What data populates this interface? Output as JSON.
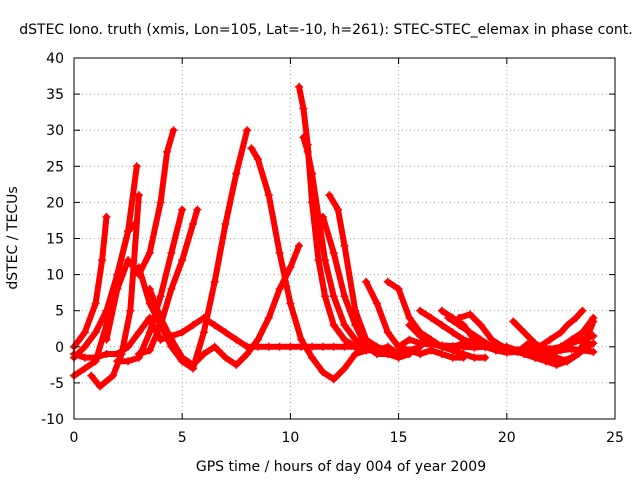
{
  "chart_data": {
    "type": "scatter",
    "title": "dSTEC Iono. truth (xmis, Lon=105, Lat=-10, h=261): STEC-STEC_elemax in phase cont.",
    "xlabel": "GPS time / hours of day 004 of year 2009",
    "ylabel": "dSTEC  / TECUs",
    "xlim": [
      0,
      25
    ],
    "ylim": [
      -10,
      40
    ],
    "x_ticks": [
      0,
      5,
      10,
      15,
      20,
      25
    ],
    "y_ticks": [
      -10,
      -5,
      0,
      5,
      10,
      15,
      20,
      25,
      30,
      35,
      40
    ],
    "x_tick_labels": [
      "0",
      "5",
      "10",
      "15",
      "20",
      "25"
    ],
    "y_tick_labels": [
      "-10",
      "-5",
      "0",
      "5",
      "10",
      "15",
      "20",
      "25",
      "30",
      "35",
      "40"
    ],
    "grid": true,
    "marker": "plus",
    "color": "#ff0000",
    "series": [
      {
        "x": [
          0,
          0.5,
          1.0,
          1.3,
          1.5
        ],
        "y": [
          0,
          2,
          6,
          12,
          18
        ]
      },
      {
        "x": [
          0,
          0.5,
          1.0,
          1.5,
          2.0,
          2.5,
          2.9
        ],
        "y": [
          -1.5,
          0,
          2,
          5,
          10,
          16,
          25
        ]
      },
      {
        "x": [
          0.8,
          1.2,
          1.8,
          2.2,
          2.6,
          3.0
        ],
        "y": [
          -4,
          -5.5,
          -4,
          -1,
          5,
          21
        ]
      },
      {
        "x": [
          0,
          0.5,
          1.0,
          1.5,
          2.0,
          2.5,
          2.8
        ],
        "y": [
          -4,
          -3,
          -2,
          3,
          10,
          16,
          17
        ]
      },
      {
        "x": [
          0,
          0.5,
          1.0,
          1.5,
          2.0,
          2.5,
          3.0,
          3.5,
          4.0
        ],
        "y": [
          -1,
          -1.5,
          -1.5,
          -1,
          -1,
          0,
          2,
          4,
          1
        ]
      },
      {
        "x": [
          1.5,
          2.0,
          2.5,
          3.0,
          3.5,
          4.0,
          4.3,
          4.6
        ],
        "y": [
          1,
          8,
          12,
          10,
          13,
          20,
          27,
          30
        ]
      },
      {
        "x": [
          3.5,
          4.0,
          4.5,
          5.0,
          5.5,
          6.0,
          6.5,
          7.0,
          7.5,
          8.0,
          8.5,
          9.0,
          9.5,
          10.0,
          10.4
        ],
        "y": [
          8,
          4,
          1,
          -1.5,
          -2.5,
          -1,
          0,
          -1.5,
          -2.5,
          -1,
          1,
          4,
          8,
          11,
          14
        ]
      },
      {
        "x": [
          2.0,
          2.5,
          3.0,
          3.5,
          4.0,
          4.5,
          5.0
        ],
        "y": [
          -2,
          -2,
          -1.5,
          2,
          7,
          13,
          19
        ]
      },
      {
        "x": [
          3.0,
          3.5,
          4.0,
          4.5,
          5.0,
          5.5,
          5.7
        ],
        "y": [
          -1,
          -0.5,
          3,
          8,
          12,
          17,
          19
        ]
      },
      {
        "x": [
          3.0,
          3.5,
          4.0,
          4.5,
          5.0,
          5.5,
          6.0,
          6.5,
          7.0,
          7.5,
          8.0
        ],
        "y": [
          11,
          6,
          3,
          0,
          -2,
          -3,
          2,
          9,
          17,
          24,
          30
        ]
      },
      {
        "x": [
          4.0,
          4.5,
          5.0,
          5.5,
          6.0,
          6.5,
          7.0,
          7.5,
          8.0,
          8.5,
          9.0,
          9.5,
          10.0,
          10.5,
          11.0,
          11.5,
          12.0,
          12.5,
          13.0
        ],
        "y": [
          1,
          1.5,
          2,
          3,
          4,
          3,
          2,
          1,
          0,
          0,
          0,
          0,
          0,
          0,
          0,
          0,
          0,
          0,
          0
        ]
      },
      {
        "x": [
          8.2,
          8.5,
          9.0,
          9.5,
          10.0,
          10.5,
          11.0,
          11.5,
          12.0,
          12.5,
          13.0,
          13.5
        ],
        "y": [
          27.5,
          26,
          21,
          13,
          6,
          1,
          -1.5,
          -3.5,
          -4.5,
          -3,
          -1,
          -0.5
        ]
      },
      {
        "x": [
          10.4,
          10.6,
          10.8,
          11.0,
          11.3,
          11.6,
          12.0,
          12.5,
          13.0,
          13.5,
          14.0,
          14.5
        ],
        "y": [
          36,
          33,
          28,
          20,
          12,
          7,
          3,
          1,
          0,
          -0.5,
          -0.5,
          0
        ]
      },
      {
        "x": [
          10.6,
          10.8,
          11.0,
          11.3,
          11.6,
          12.0,
          12.5,
          13.0,
          13.5,
          14.0,
          14.5,
          15.0
        ],
        "y": [
          29,
          27,
          24,
          18,
          12,
          7,
          3,
          1,
          0,
          -0.5,
          0,
          -1
        ]
      },
      {
        "x": [
          11.5,
          12.0,
          12.5,
          13.0,
          13.5,
          14.0,
          14.5,
          15.0,
          15.5
        ],
        "y": [
          18,
          13,
          7,
          3,
          0,
          -1,
          -1,
          -1.5,
          -1
        ]
      },
      {
        "x": [
          11.8,
          12.2,
          12.5,
          13.0,
          13.5,
          14.0,
          14.5,
          15.0,
          15.5,
          16.0
        ],
        "y": [
          21,
          19,
          14,
          5,
          1,
          0,
          -0.5,
          -1,
          -0.5,
          0
        ]
      },
      {
        "x": [
          13.5,
          14.0,
          14.5,
          15.0,
          15.5,
          16.0,
          16.5,
          17.0,
          17.5,
          18.0
        ],
        "y": [
          9,
          6,
          2,
          0,
          -0.5,
          -1,
          -0.5,
          -1,
          -1.5,
          -1.5
        ]
      },
      {
        "x": [
          14.5,
          15.0,
          15.5,
          16.0,
          16.5,
          17.0,
          17.5,
          18.0,
          18.5,
          19.0
        ],
        "y": [
          9,
          8,
          4,
          2,
          1,
          0,
          -0.5,
          -1,
          -1.5,
          -1.5
        ]
      },
      {
        "x": [
          15.0,
          15.5,
          16.0,
          16.5,
          17.0,
          17.5,
          18.0,
          18.5,
          19.0,
          19.5,
          20.0,
          20.5,
          21.0,
          21.5,
          22.0,
          22.5,
          23.0,
          23.5,
          24.0
        ],
        "y": [
          0,
          1,
          0.5,
          0.3,
          0.2,
          0.1,
          0,
          -0.1,
          0,
          0,
          -0.3,
          -0.5,
          -0.3,
          -0.5,
          -0.8,
          -0.5,
          -0.3,
          -0.5,
          -0.7
        ]
      },
      {
        "x": [
          15.5,
          16.0,
          16.5,
          17.0,
          17.5,
          18.0,
          18.5,
          19.0,
          19.5,
          20.0
        ],
        "y": [
          3,
          1.5,
          0.5,
          0,
          0,
          0.5,
          0.2,
          0,
          -0.2,
          -0.5
        ]
      },
      {
        "x": [
          16.0,
          16.5,
          17.0,
          17.5,
          18.0,
          18.5,
          19.0,
          19.5,
          20.0,
          20.5,
          21.0,
          21.5,
          22.0,
          22.5,
          23.0,
          23.5,
          24.0
        ],
        "y": [
          5,
          4,
          3,
          2,
          1,
          0.5,
          0,
          0,
          0,
          -0.5,
          -0.5,
          -1,
          -1.5,
          -2,
          -1.5,
          -0.5,
          0.5
        ]
      },
      {
        "x": [
          17.0,
          17.5,
          18.0,
          18.5,
          19.0,
          19.5,
          20.0,
          20.5
        ],
        "y": [
          5,
          4,
          3,
          1,
          0,
          -0.5,
          -0.5,
          -0.5
        ]
      },
      {
        "x": [
          17.3,
          17.8,
          18.3,
          18.8,
          19.3,
          19.8,
          20.3
        ],
        "y": [
          4,
          3,
          2,
          1,
          0,
          -0.3,
          -0.5
        ]
      },
      {
        "x": [
          17.8,
          18.3,
          18.8,
          19.3,
          19.8,
          20.3,
          20.8,
          21.3,
          21.8,
          22.3,
          22.8,
          23.3,
          23.8
        ],
        "y": [
          4,
          4.5,
          3,
          1,
          0,
          -0.5,
          -1,
          -1.5,
          -2,
          -2.5,
          -2,
          -1,
          0.5
        ]
      },
      {
        "x": [
          20.3,
          20.8,
          21.3,
          21.8,
          22.3,
          22.8,
          23.3,
          23.8,
          24.0
        ],
        "y": [
          3.5,
          2,
          0.5,
          -0.5,
          -1.5,
          -2,
          -1,
          2,
          3.5
        ]
      },
      {
        "x": [
          19.5,
          20.0,
          20.5,
          21.0,
          21.5,
          22.0,
          22.5,
          23.0,
          23.5,
          24.0
        ],
        "y": [
          -0.5,
          -0.8,
          -0.7,
          0.5,
          0,
          -0.3,
          0,
          0.5,
          1,
          1.5
        ]
      },
      {
        "x": [
          21.0,
          21.5,
          22.0,
          22.5,
          23.0,
          23.5,
          24.0
        ],
        "y": [
          0,
          -0.5,
          -0.5,
          0,
          1,
          2,
          4
        ]
      },
      {
        "x": [
          21.5,
          22.0,
          22.5,
          22.8,
          23.2,
          23.5
        ],
        "y": [
          0,
          1,
          2,
          3,
          4,
          5
        ]
      }
    ]
  }
}
